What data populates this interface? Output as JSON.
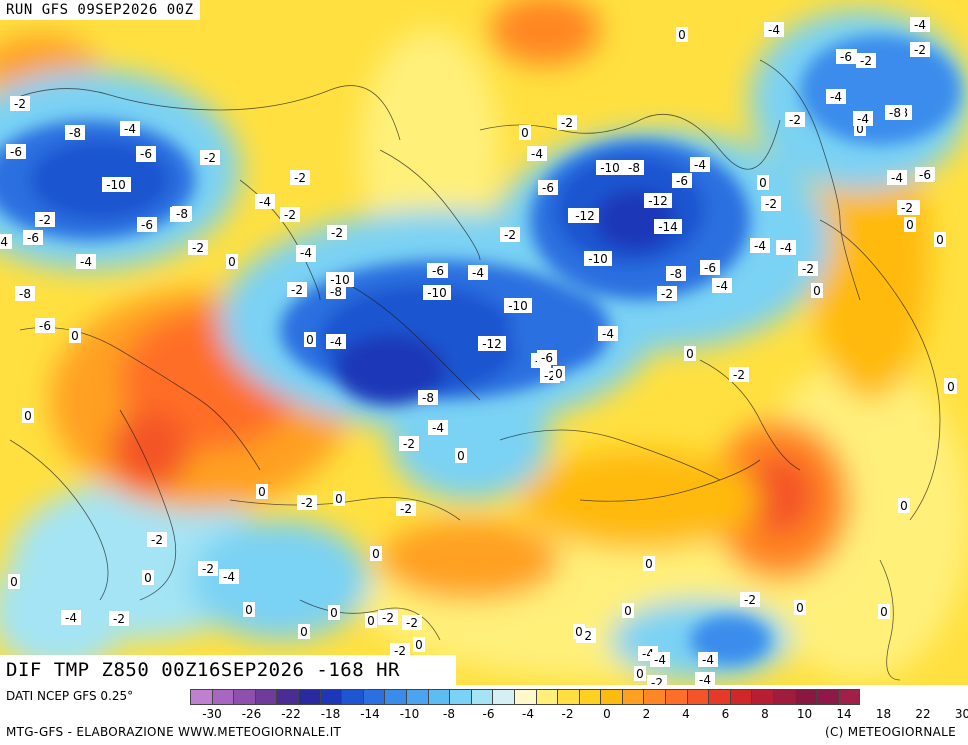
{
  "header": {
    "run_label": "RUN GFS 09SEP2026 00Z"
  },
  "title": {
    "text": "DIF TMP Z850 00Z16SEP2026 -168 HR"
  },
  "footer": {
    "source": "DATI NCEP GFS 0.25°",
    "credit_left": "MTG-GFS - ELABORAZIONE WWW.METEOGIORNALE.IT",
    "credit_right": "(C) METEOGIORNALE"
  },
  "legend": {
    "tick_labels": [
      "-30",
      "-26",
      "-22",
      "-18",
      "-14",
      "-10",
      "-8",
      "-6",
      "-4",
      "-2",
      "0",
      "2",
      "4",
      "6",
      "8",
      "10",
      "14",
      "18",
      "22",
      "30"
    ],
    "colors": [
      "#c080d0",
      "#a866c0",
      "#8e50ae",
      "#703c9c",
      "#4a2c96",
      "#2a2aa0",
      "#1c38b8",
      "#1e55d0",
      "#2a70e0",
      "#3a8cec",
      "#4aa4f0",
      "#5cbcf4",
      "#7ad2f4",
      "#a4e4f4",
      "#d4f0f4",
      "#fff8c8",
      "#fff07a",
      "#ffe040",
      "#ffd020",
      "#ffba10",
      "#ffa020",
      "#ff8624",
      "#ff6e28",
      "#f45428",
      "#e63a28",
      "#d02828",
      "#b81e32",
      "#a01c3c",
      "#881840",
      "#901848",
      "#a0204a"
    ]
  },
  "contour_labels": [
    "-2",
    "-6",
    "-8",
    "-4",
    "-6",
    "-10",
    "-2",
    "-6",
    "-8",
    "-6",
    "-4",
    "-2",
    "-8",
    "-6",
    "-4",
    "0",
    "-2",
    "-2",
    "-4",
    "-2",
    "-4",
    "-2",
    "0",
    "-2",
    "0",
    "-4",
    "-6",
    "-10",
    "-8",
    "-12",
    "-14",
    "-12",
    "-10",
    "-8",
    "-6",
    "-4",
    "-6",
    "-4",
    "-2",
    "0",
    "-2",
    "-4",
    "-6",
    "-8",
    "-10",
    "-6",
    "-4",
    "-8",
    "-10",
    "-8",
    "-2",
    "-6",
    "-4",
    "-10",
    "-12",
    "-12",
    "-10",
    "-8",
    "-4",
    "-2",
    "-4",
    "-6",
    "-2",
    "0",
    "0",
    "0",
    "-4",
    "-2",
    "0",
    "-2",
    "-4",
    "-6",
    "-8",
    "-2",
    "-4",
    "0",
    "-2",
    "-4",
    "-2",
    "0",
    "0",
    "-2",
    "0",
    "-2",
    "0",
    "-2",
    "-4",
    "0",
    "-2",
    "0",
    "-2",
    "0",
    "0",
    "0",
    "-2",
    "-4",
    "-2",
    "0",
    "0",
    "0",
    "-2",
    "-4",
    "-4",
    "-4",
    "-4",
    "-2",
    "-6",
    "-2",
    "-4",
    "-8",
    "-4",
    "-6",
    "-2",
    "-2",
    "0",
    "0",
    "0",
    "0",
    "0",
    "0",
    "-2",
    "0",
    "0",
    "0",
    "-2",
    "0",
    "-4",
    "-2",
    "0",
    "0"
  ]
}
